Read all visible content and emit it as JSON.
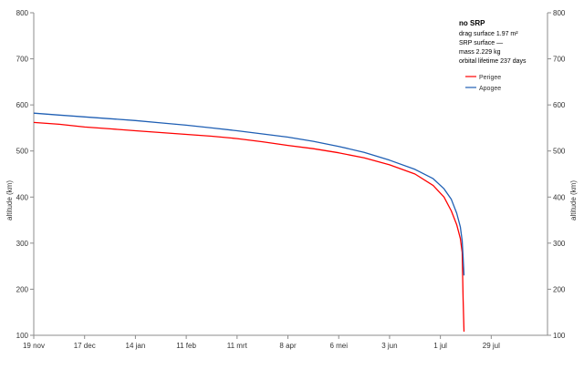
{
  "chart_data": {
    "type": "line",
    "xlabel": "",
    "ylabel": "altitude (km)",
    "ylabel_right": "altitude (km)",
    "ylim": [
      100,
      800
    ],
    "yticks": [
      100,
      200,
      300,
      400,
      500,
      600,
      700,
      800
    ],
    "x_tick_labels": [
      "19 nov",
      "17 dec",
      "14 jan",
      "11 feb",
      "11 mrt",
      "8 apr",
      "6 mei",
      "3 jun",
      "1 jul",
      "29 jul"
    ],
    "x_tick_days": [
      0,
      28,
      56,
      84,
      112,
      140,
      168,
      196,
      224,
      252
    ],
    "xlim_days": [
      0,
      283
    ],
    "grid": false,
    "legend_position": "top-right",
    "annotation": {
      "title": "no SRP",
      "drag_surface": "drag surface  1.97 m²",
      "srp_surface": "SRP surface  —",
      "mass": "mass 2.229 kg",
      "lifetime": "orbital lifetime 237 days"
    },
    "series": [
      {
        "name": "Perigee",
        "color": "#ff0000",
        "x": [
          0,
          14,
          28,
          42,
          56,
          70,
          84,
          98,
          112,
          126,
          140,
          154,
          168,
          182,
          196,
          210,
          220,
          226,
          230,
          233,
          235,
          236,
          236.5,
          237
        ],
        "y": [
          562,
          558,
          552,
          548,
          544,
          540,
          536,
          532,
          527,
          520,
          512,
          505,
          496,
          485,
          470,
          450,
          425,
          400,
          370,
          340,
          310,
          280,
          180,
          108
        ]
      },
      {
        "name": "Apogee",
        "color": "#1f5fb4",
        "x": [
          0,
          14,
          28,
          42,
          56,
          70,
          84,
          98,
          112,
          126,
          140,
          154,
          168,
          182,
          196,
          210,
          220,
          226,
          230,
          233,
          235,
          236,
          236.5,
          237
        ],
        "y": [
          582,
          578,
          574,
          570,
          566,
          561,
          556,
          550,
          544,
          537,
          530,
          521,
          510,
          497,
          480,
          460,
          440,
          418,
          395,
          365,
          335,
          305,
          270,
          230
        ]
      }
    ]
  }
}
